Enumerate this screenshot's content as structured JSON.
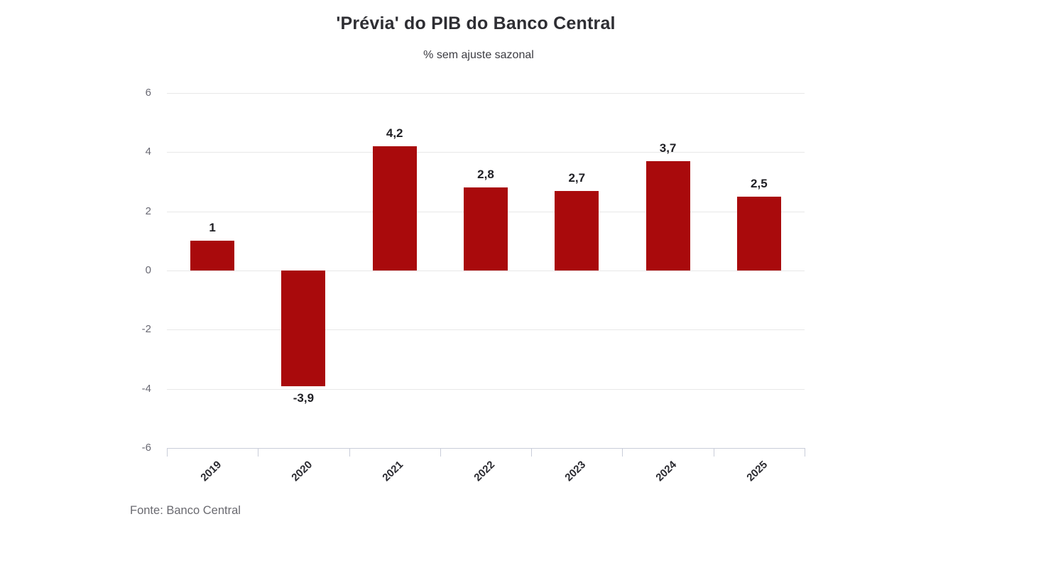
{
  "chart_data": {
    "type": "bar",
    "title": "'Prévia' do PIB do Banco Central",
    "subtitle": "% sem ajuste sazonal",
    "source": "Fonte: Banco Central",
    "categories": [
      "2019",
      "2020",
      "2021",
      "2022",
      "2023",
      "2024",
      "2025"
    ],
    "values": [
      1,
      -3.9,
      4.2,
      2.8,
      2.7,
      3.7,
      2.5
    ],
    "value_labels": [
      "1",
      "-3,9",
      "4,2",
      "2,8",
      "2,7",
      "3,7",
      "2,5"
    ],
    "ylabel": "",
    "xlabel": "",
    "ylim": [
      -6,
      6
    ],
    "yticks": [
      6,
      4,
      2,
      0,
      -2,
      -4,
      -6
    ],
    "grid": true,
    "legend": "none",
    "colors": {
      "bar": "#a90a0c",
      "grid": "#e8e8e8",
      "axis": "#c9cdd9",
      "y_tick_label": "#696973",
      "x_tick_label": "#2b2b31",
      "value_label": "#1f1f24",
      "title": "#2e2e33",
      "subtitle": "#3c3c42",
      "source": "#6a6a70"
    }
  }
}
